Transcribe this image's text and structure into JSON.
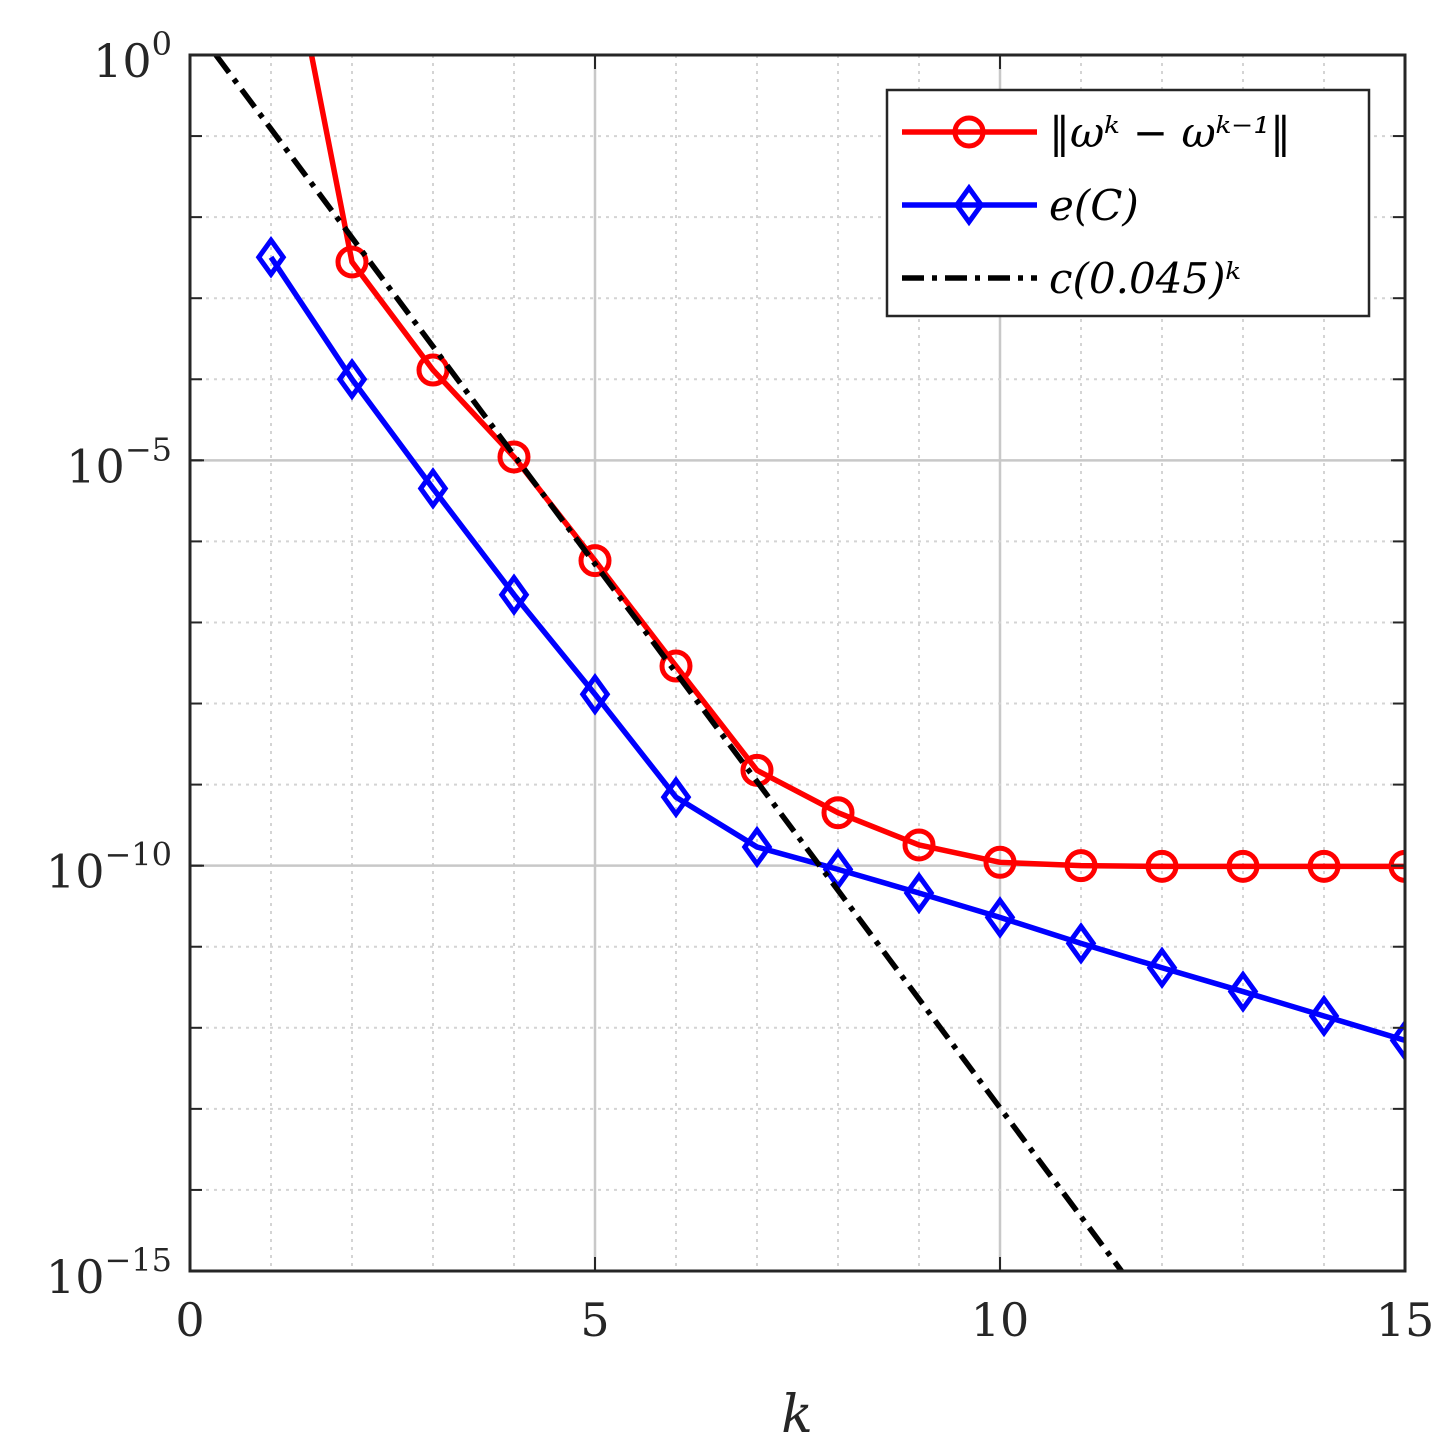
{
  "chart_data": {
    "type": "line",
    "xlabel": "k",
    "ylabel": "",
    "xlim": [
      0,
      15
    ],
    "ylim": [
      1e-15,
      1
    ],
    "yscale": "log",
    "grid": "on (major solid, minor dotted)",
    "legend_position": "top-right",
    "xticks": [
      0,
      5,
      10,
      15
    ],
    "xtick_labels": [
      "0",
      "5",
      "10",
      "15"
    ],
    "yticks": [
      1e-15,
      1e-10,
      1e-05,
      1
    ],
    "ytick_labels": [
      {
        "base": "10",
        "exp": "−15"
      },
      {
        "base": "10",
        "exp": "−10"
      },
      {
        "base": "10",
        "exp": "−5"
      },
      {
        "base": "10",
        "exp": "0"
      }
    ],
    "series": [
      {
        "name": "‖ωᵏ − ωᵏ⁻¹‖",
        "color": "#ff0000",
        "marker": "circle",
        "x": [
          1.5,
          2,
          3,
          4,
          5,
          6,
          7,
          8,
          9,
          10,
          11,
          12,
          13,
          14,
          15
        ],
        "y": [
          1,
          0.0028,
          0.00013,
          1.1e-05,
          5.8e-07,
          2.9e-08,
          1.5e-09,
          4.5e-10,
          1.8e-10,
          1.1e-10,
          1e-10,
          9.8e-11,
          9.8e-11,
          9.8e-11,
          9.8e-11
        ]
      },
      {
        "name": "e(C)",
        "color": "#0000ff",
        "marker": "diamond",
        "x": [
          1,
          2,
          3,
          4,
          5,
          6,
          7,
          8,
          9,
          10,
          11,
          12,
          13,
          14,
          15
        ],
        "y": [
          0.0032,
          0.0001,
          4.5e-06,
          2.2e-07,
          1.3e-08,
          7e-10,
          1.7e-10,
          9e-11,
          4.6e-11,
          2.3e-11,
          1.1e-11,
          5.5e-12,
          2.8e-12,
          1.4e-12,
          7e-13
        ]
      },
      {
        "name": "c(0.045)ᵏ",
        "color": "#000000",
        "marker": "none",
        "linestyle": "dash-dot",
        "x": [
          0.32,
          11.5
        ],
        "y": [
          1,
          1e-15
        ]
      }
    ]
  }
}
